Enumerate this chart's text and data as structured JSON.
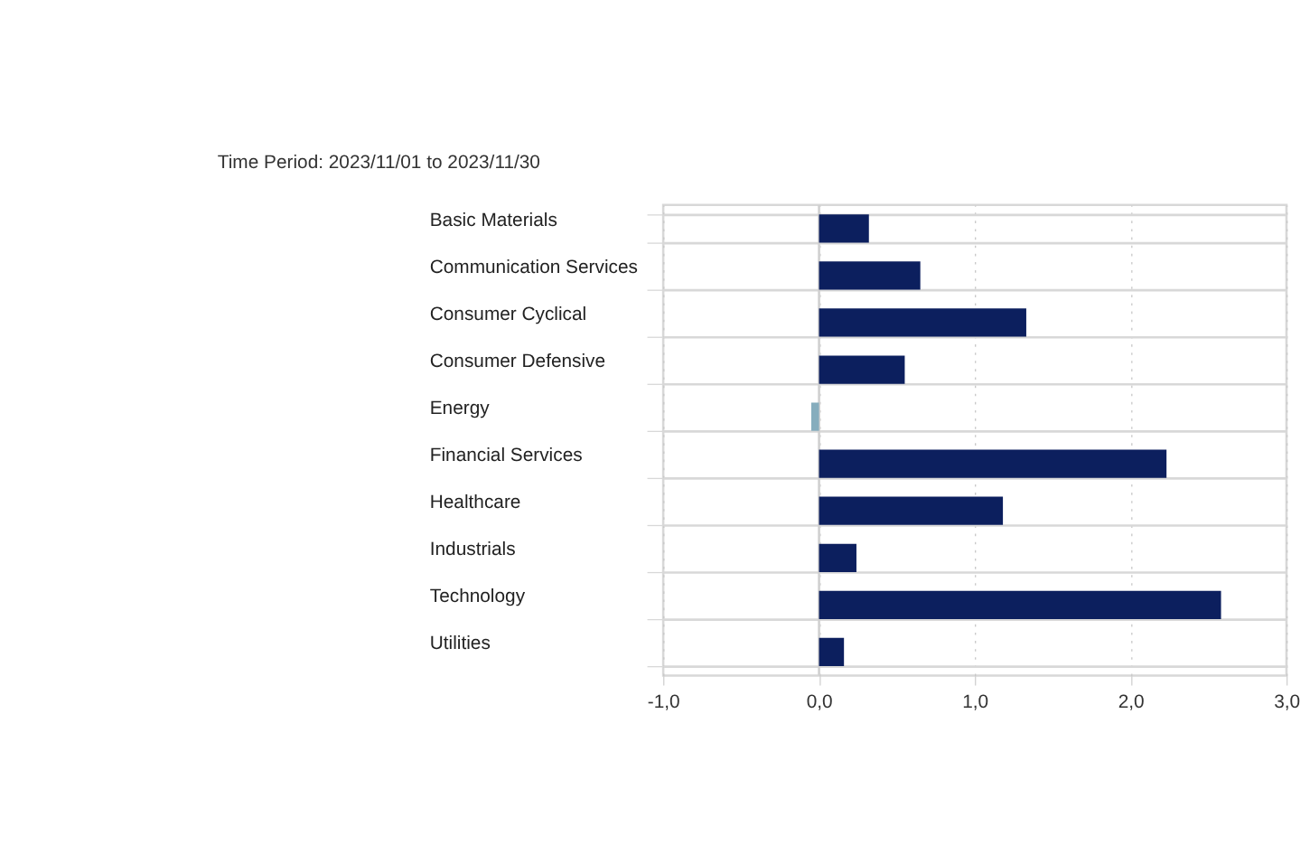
{
  "chart_data": {
    "type": "bar",
    "orientation": "horizontal",
    "title": "Time Period: 2023/11/01 to 2023/11/30",
    "categories": [
      "Basic Materials",
      "Communication Services",
      "Consumer Cyclical",
      "Consumer Defensive",
      "Energy",
      "Financial Services",
      "Healthcare",
      "Industrials",
      "Technology",
      "Utilities"
    ],
    "values": [
      0.32,
      0.65,
      1.33,
      0.55,
      -0.05,
      2.23,
      1.18,
      0.24,
      2.58,
      0.16
    ],
    "colors": [
      "#0c1f5e",
      "#0c1f5e",
      "#0c1f5e",
      "#0c1f5e",
      "#86adbd",
      "#0c1f5e",
      "#0c1f5e",
      "#0c1f5e",
      "#0c1f5e",
      "#0c1f5e"
    ],
    "xlim": [
      -1.0,
      3.0
    ],
    "xticks": [
      {
        "value": -1.0,
        "label": "-1,0"
      },
      {
        "value": 0.0,
        "label": "0,0"
      },
      {
        "value": 1.0,
        "label": "1,0"
      },
      {
        "value": 2.0,
        "label": "2,0"
      },
      {
        "value": 3.0,
        "label": "3,0"
      }
    ],
    "grid": true
  }
}
